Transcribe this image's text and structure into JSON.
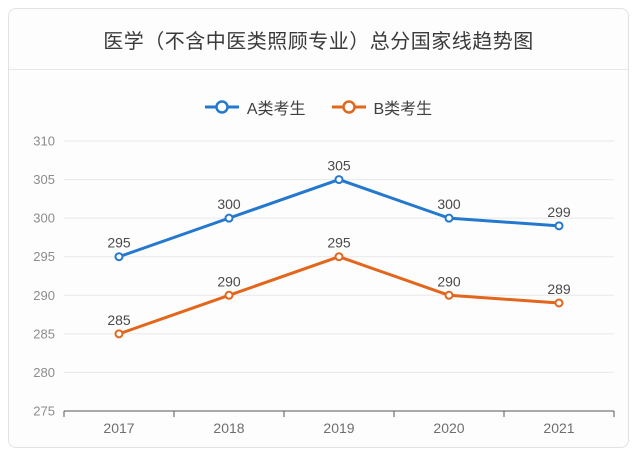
{
  "title": "医学（不含中医类照顾专业）总分国家线趋势图",
  "chart_data": {
    "type": "line",
    "title": "医学（不含中医类照顾专业）总分国家线趋势图",
    "categories": [
      "2017",
      "2018",
      "2019",
      "2020",
      "2021"
    ],
    "series": [
      {
        "name": "A类考生",
        "color": "#2478cd",
        "values": [
          295,
          300,
          305,
          300,
          299
        ]
      },
      {
        "name": "B类考生",
        "color": "#e2661c",
        "values": [
          285,
          290,
          295,
          290,
          289
        ]
      }
    ],
    "xlabel": "",
    "ylabel": "",
    "ylim": [
      275,
      310
    ],
    "ytick_step": 5,
    "grid": true,
    "data_labels": true,
    "legend_position": "top"
  },
  "colors": {
    "series_a": "#2478cd",
    "series_b": "#e2661c",
    "title_text": "#3a3a3a",
    "axis_label": "#8c8c8c",
    "x_axis_label": "#6f6f6f",
    "data_label": "#4a4a4a",
    "grid_line": "#e8e8e8",
    "axis_line": "#58585a",
    "card_border": "#e2e2e2",
    "card_background": "#fdfdfd"
  }
}
